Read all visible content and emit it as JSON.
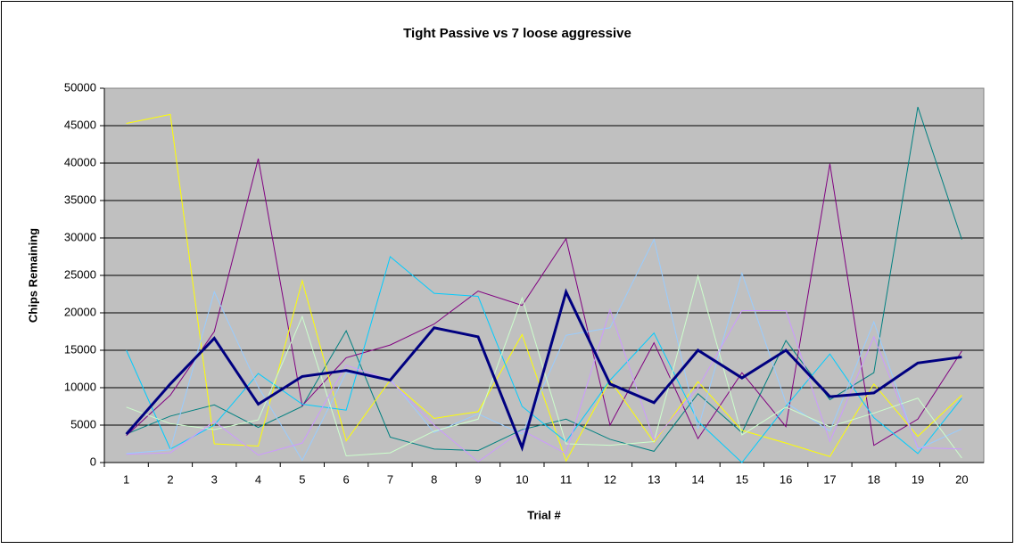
{
  "chart_data": {
    "type": "line",
    "title": "Tight Passive vs 7 loose aggressive",
    "x_label": "Trial #",
    "y_label": "Chips Remaining",
    "categories": [
      1,
      2,
      3,
      4,
      5,
      6,
      7,
      8,
      9,
      10,
      11,
      12,
      13,
      14,
      15,
      16,
      17,
      18,
      19,
      20
    ],
    "ylim": [
      0,
      50000
    ],
    "yticks": [
      0,
      5000,
      10000,
      15000,
      20000,
      25000,
      30000,
      35000,
      40000,
      45000,
      50000
    ],
    "grid": true,
    "background": "#c0c0c0",
    "series": [
      {
        "color": "#008080",
        "width": 1,
        "values": [
          3800,
          6200,
          7700,
          4700,
          7500,
          17600,
          3400,
          1800,
          1600,
          4400,
          5800,
          3100,
          1500,
          9200,
          4000,
          16300,
          8400,
          12000,
          47500,
          29800
        ]
      },
      {
        "color": "#800080",
        "width": 1,
        "values": [
          3600,
          9000,
          17500,
          40600,
          7600,
          14000,
          15700,
          18500,
          22900,
          21000,
          29900,
          5000,
          16000,
          3200,
          12000,
          4800,
          39900,
          2300,
          5800,
          14900
        ]
      },
      {
        "color": "#ffff00",
        "width": 1,
        "values": [
          45300,
          46500,
          2500,
          2200,
          24300,
          2900,
          11000,
          5900,
          6800,
          17100,
          200,
          11000,
          2700,
          10800,
          4300,
          2600,
          800,
          10500,
          3500,
          9000
        ]
      },
      {
        "color": "#00ccff",
        "width": 1,
        "values": [
          15000,
          1800,
          5000,
          11900,
          7800,
          7000,
          27500,
          22600,
          22200,
          7500,
          2800,
          11000,
          17300,
          5500,
          0,
          7500,
          14500,
          6000,
          1200,
          8600
        ]
      },
      {
        "color": "#99ccff",
        "width": 1,
        "values": [
          1200,
          1700,
          22800,
          10100,
          300,
          12000,
          11200,
          4000,
          6500,
          3800,
          17000,
          18000,
          29800,
          4500,
          25300,
          8000,
          4200,
          18800,
          1800,
          4500
        ]
      },
      {
        "color": "#ccffcc",
        "width": 1,
        "values": [
          7400,
          5200,
          4400,
          5700,
          19500,
          900,
          1300,
          4200,
          5800,
          22000,
          2500,
          2300,
          2800,
          24900,
          3700,
          7400,
          4800,
          6600,
          8600,
          600
        ]
      },
      {
        "color": "#cc99ff",
        "width": 1,
        "values": [
          1100,
          1300,
          5500,
          1000,
          2600,
          13000,
          11000,
          5000,
          100,
          4300,
          1200,
          20400,
          3000,
          10000,
          20300,
          20300,
          2800,
          16800,
          2000,
          1800
        ]
      },
      {
        "color": "#000080",
        "width": 3,
        "values": [
          3800,
          10500,
          16600,
          7800,
          11500,
          12300,
          11000,
          18000,
          16800,
          2000,
          22800,
          10500,
          8000,
          15000,
          11300,
          15000,
          8800,
          9300,
          13300,
          14100
        ]
      }
    ]
  }
}
